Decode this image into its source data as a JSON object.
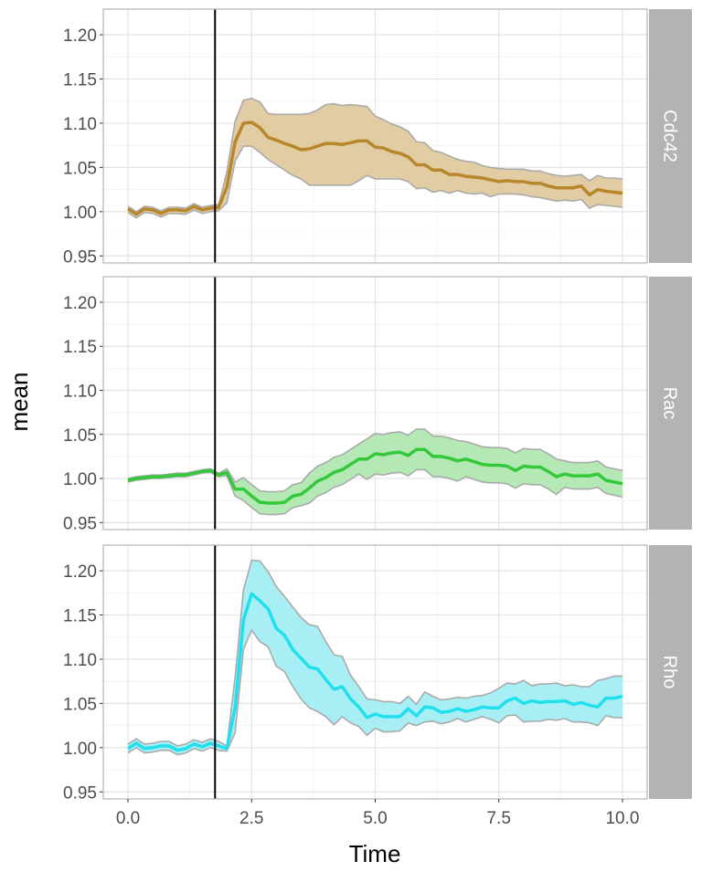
{
  "chart_data": {
    "type": "line",
    "xlabel": "Time",
    "ylabel": "mean",
    "xlim": [
      -0.5,
      10.5
    ],
    "ylim": [
      0.942,
      1.229
    ],
    "x_range": [
      0,
      10
    ],
    "x_ticks": [
      "0.0",
      "2.5",
      "5.0",
      "7.5",
      "10.0"
    ],
    "x_tick_values": [
      0,
      2.5,
      5,
      7.5,
      10
    ],
    "y_ticks": [
      "0.95",
      "1.00",
      "1.05",
      "1.10",
      "1.15",
      "1.20"
    ],
    "y_tick_values": [
      0.95,
      1.0,
      1.05,
      1.1,
      1.15,
      1.2
    ],
    "vline_x": 1.76,
    "grid": true,
    "band_edge_color": "#aaaaaa",
    "panels": [
      {
        "name": "Cdc42",
        "line_color": "#b8862b",
        "fill_color": "#e2cca3",
        "mean": [
          1.003,
          0.997,
          1.003,
          1.002,
          0.998,
          1.002,
          1.002,
          1.001,
          1.006,
          1.002,
          1.004,
          1.005,
          1.028,
          1.079,
          1.1,
          1.101,
          1.095,
          1.084,
          1.081,
          1.077,
          1.074,
          1.07,
          1.071,
          1.074,
          1.077,
          1.077,
          1.076,
          1.078,
          1.08,
          1.08,
          1.073,
          1.072,
          1.068,
          1.066,
          1.062,
          1.053,
          1.053,
          1.047,
          1.047,
          1.042,
          1.042,
          1.04,
          1.039,
          1.038,
          1.036,
          1.034,
          1.035,
          1.034,
          1.034,
          1.032,
          1.032,
          1.029,
          1.027,
          1.027,
          1.027,
          1.029,
          1.019,
          1.025,
          1.023,
          1.022,
          1.021
        ],
        "upper": [
          1.006,
          1.0,
          1.006,
          1.005,
          1.001,
          1.005,
          1.005,
          1.004,
          1.009,
          1.005,
          1.007,
          1.008,
          1.045,
          1.102,
          1.126,
          1.128,
          1.124,
          1.111,
          1.11,
          1.11,
          1.11,
          1.11,
          1.111,
          1.115,
          1.121,
          1.122,
          1.12,
          1.121,
          1.12,
          1.119,
          1.108,
          1.104,
          1.099,
          1.096,
          1.091,
          1.079,
          1.078,
          1.069,
          1.067,
          1.063,
          1.059,
          1.057,
          1.056,
          1.052,
          1.05,
          1.049,
          1.048,
          1.048,
          1.048,
          1.046,
          1.046,
          1.043,
          1.041,
          1.04,
          1.041,
          1.042,
          1.035,
          1.041,
          1.038,
          1.038,
          1.037
        ],
        "lower": [
          0.999,
          0.993,
          0.999,
          0.998,
          0.994,
          0.998,
          0.998,
          0.997,
          1.002,
          0.998,
          1.0,
          1.001,
          1.01,
          1.057,
          1.074,
          1.074,
          1.067,
          1.059,
          1.053,
          1.047,
          1.041,
          1.037,
          1.03,
          1.03,
          1.03,
          1.03,
          1.03,
          1.03,
          1.035,
          1.041,
          1.037,
          1.037,
          1.037,
          1.037,
          1.034,
          1.026,
          1.027,
          1.022,
          1.024,
          1.021,
          1.024,
          1.021,
          1.02,
          1.021,
          1.017,
          1.02,
          1.02,
          1.02,
          1.019,
          1.017,
          1.016,
          1.014,
          1.012,
          1.013,
          1.012,
          1.014,
          1.004,
          1.008,
          1.007,
          1.006,
          1.005
        ]
      },
      {
        "name": "Rac",
        "line_color": "#33c93a",
        "fill_color": "#b4e8b4",
        "mean": [
          0.998,
          1.0,
          1.001,
          1.002,
          1.002,
          1.003,
          1.004,
          1.004,
          1.006,
          1.008,
          1.009,
          1.004,
          1.007,
          0.988,
          0.988,
          0.98,
          0.973,
          0.972,
          0.972,
          0.973,
          0.98,
          0.982,
          0.989,
          0.997,
          1.001,
          1.007,
          1.01,
          1.016,
          1.022,
          1.022,
          1.028,
          1.027,
          1.029,
          1.03,
          1.026,
          1.033,
          1.033,
          1.025,
          1.025,
          1.023,
          1.02,
          1.022,
          1.019,
          1.016,
          1.015,
          1.015,
          1.014,
          1.009,
          1.014,
          1.013,
          1.013,
          1.008,
          1.002,
          1.005,
          1.003,
          1.003,
          1.003,
          1.005,
          0.998,
          0.996,
          0.994
        ],
        "upper": [
          1.0,
          1.002,
          1.003,
          1.004,
          1.004,
          1.005,
          1.006,
          1.006,
          1.008,
          1.01,
          1.011,
          1.006,
          1.011,
          0.996,
          1.001,
          0.993,
          0.986,
          0.985,
          0.985,
          0.986,
          0.993,
          0.995,
          1.006,
          1.014,
          1.018,
          1.024,
          1.027,
          1.033,
          1.039,
          1.045,
          1.051,
          1.05,
          1.052,
          1.053,
          1.049,
          1.056,
          1.056,
          1.048,
          1.048,
          1.046,
          1.043,
          1.042,
          1.039,
          1.036,
          1.035,
          1.035,
          1.034,
          1.029,
          1.034,
          1.033,
          1.033,
          1.028,
          1.022,
          1.02,
          1.018,
          1.018,
          1.018,
          1.02,
          1.013,
          1.011,
          1.009
        ],
        "lower": [
          0.996,
          0.998,
          0.999,
          1.0,
          1.0,
          1.001,
          1.002,
          1.002,
          1.004,
          1.006,
          1.007,
          1.002,
          1.003,
          0.98,
          0.975,
          0.967,
          0.96,
          0.959,
          0.959,
          0.96,
          0.967,
          0.969,
          0.972,
          0.98,
          0.984,
          0.99,
          0.993,
          0.999,
          1.005,
          0.999,
          1.005,
          1.004,
          1.006,
          1.007,
          1.003,
          1.01,
          1.01,
          1.002,
          1.002,
          1.0,
          0.997,
          1.002,
          0.999,
          0.996,
          0.995,
          0.995,
          0.994,
          0.989,
          0.994,
          0.993,
          0.993,
          0.988,
          0.982,
          0.99,
          0.988,
          0.988,
          0.988,
          0.99,
          0.983,
          0.981,
          0.979
        ]
      },
      {
        "name": "Rho",
        "line_color": "#22dfee",
        "fill_color": "#a8eff5",
        "mean": [
          0.999,
          1.005,
          0.999,
          1.0,
          1.002,
          1.002,
          0.997,
          0.999,
          1.004,
          1.001,
          1.005,
          1.002,
          0.999,
          1.045,
          1.144,
          1.174,
          1.166,
          1.157,
          1.135,
          1.127,
          1.111,
          1.101,
          1.091,
          1.089,
          1.077,
          1.066,
          1.069,
          1.055,
          1.046,
          1.034,
          1.038,
          1.035,
          1.035,
          1.035,
          1.044,
          1.036,
          1.046,
          1.045,
          1.04,
          1.041,
          1.044,
          1.041,
          1.043,
          1.046,
          1.045,
          1.045,
          1.053,
          1.056,
          1.05,
          1.053,
          1.051,
          1.052,
          1.052,
          1.053,
          1.049,
          1.051,
          1.048,
          1.046,
          1.056,
          1.056,
          1.058
        ],
        "upper": [
          1.004,
          1.01,
          1.004,
          1.005,
          1.007,
          1.007,
          1.002,
          1.004,
          1.009,
          1.006,
          1.01,
          1.007,
          1.002,
          1.079,
          1.178,
          1.212,
          1.211,
          1.199,
          1.182,
          1.171,
          1.159,
          1.147,
          1.139,
          1.137,
          1.12,
          1.105,
          1.103,
          1.082,
          1.069,
          1.055,
          1.054,
          1.052,
          1.052,
          1.05,
          1.058,
          1.049,
          1.063,
          1.058,
          1.054,
          1.055,
          1.057,
          1.056,
          1.058,
          1.059,
          1.062,
          1.067,
          1.073,
          1.072,
          1.076,
          1.07,
          1.072,
          1.072,
          1.073,
          1.07,
          1.071,
          1.069,
          1.069,
          1.076,
          1.078,
          1.081,
          1.081
        ],
        "lower": [
          0.994,
          1.0,
          0.994,
          0.995,
          0.997,
          0.997,
          0.992,
          0.994,
          0.999,
          0.996,
          1.0,
          0.997,
          0.996,
          1.017,
          1.111,
          1.133,
          1.12,
          1.114,
          1.092,
          1.086,
          1.069,
          1.055,
          1.045,
          1.041,
          1.035,
          1.026,
          1.035,
          1.028,
          1.024,
          1.014,
          1.022,
          1.018,
          1.018,
          1.019,
          1.028,
          1.025,
          1.029,
          1.03,
          1.027,
          1.029,
          1.033,
          1.029,
          1.032,
          1.035,
          1.032,
          1.028,
          1.036,
          1.037,
          1.029,
          1.03,
          1.03,
          1.032,
          1.031,
          1.033,
          1.029,
          1.029,
          1.028,
          1.025,
          1.036,
          1.034,
          1.034
        ]
      }
    ]
  }
}
